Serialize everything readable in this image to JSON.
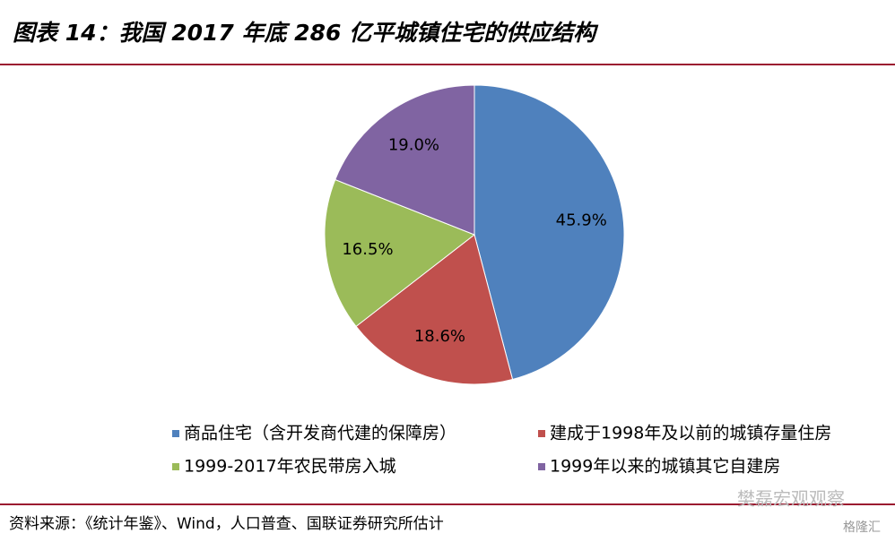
{
  "chart_data": {
    "type": "pie",
    "title": "图表 14：我国 2017 年底 286 亿平城镇住宅的供应结构",
    "categories": [
      "商品住宅（含开发商代建的保障房）",
      "建成于1998年及以前的城镇存量住房",
      "1999-2017年农民带房入城",
      "1999年以来的城镇其它自建房"
    ],
    "values": [
      45.9,
      18.6,
      16.5,
      19.0
    ],
    "value_labels": [
      "45.9%",
      "18.6%",
      "16.5%",
      "19.0%"
    ],
    "colors": [
      "#4f81bd",
      "#c0504d",
      "#9bbb59",
      "#8064a2"
    ],
    "source": "资料来源：《统计年鉴》、Wind，人口普查、国联证券研究所估计",
    "watermarks": [
      "樊磊宏观观察",
      "格隆汇"
    ]
  }
}
